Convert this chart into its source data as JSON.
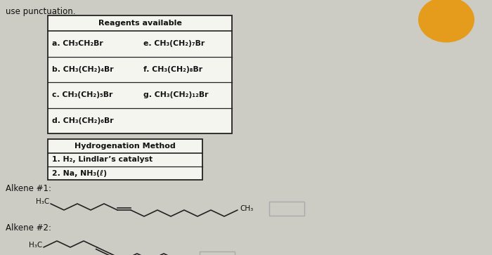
{
  "bg_color": "#cccbc4",
  "title_text": "use punctuation.",
  "reagents_title": "Reagents available",
  "reagents": [
    [
      "a. CH₃CH₂Br",
      "e. CH₃(CH₂)₇Br"
    ],
    [
      "b. CH₃(CH₂)₄Br",
      "f. CH₃(CH₂)₈Br"
    ],
    [
      "c. CH₃(CH₂)₅Br",
      "g. CH₃(CH₂)₁₂Br"
    ],
    [
      "d. CH₃(CH₂)₆Br",
      ""
    ]
  ],
  "hydro_title": "Hydrogenation Method",
  "hydro_methods": [
    "1. H₂, Lindlar’s catalyst",
    "2. Na, NH₃(ℓ)"
  ],
  "alkene1_label": "Alkene #1:",
  "alkene2_label": "Alkene #2:",
  "h3c_label": "H₃C",
  "ch3_label": "CH₃",
  "table_bg": "#f5f5f0",
  "table_border": "#222222",
  "text_color": "#111111",
  "bold_color": "#cc0000",
  "line_color": "#222222",
  "answer_box_color": "#cccbc4",
  "orange_color": "#e8960a"
}
